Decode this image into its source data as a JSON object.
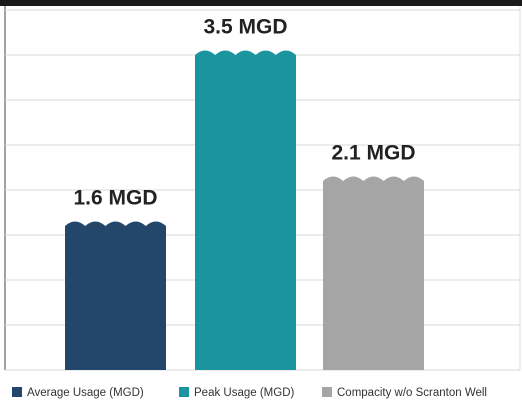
{
  "chart_data": {
    "type": "bar",
    "categories": [
      "Average Usage (MGD)",
      "Peak Usage (MGD)",
      "Compacity w/o Scranton Well"
    ],
    "values": [
      1.6,
      3.5,
      2.1
    ],
    "value_labels": [
      "1.6 MGD",
      "3.5 MGD",
      "2.1 MGD"
    ],
    "colors": [
      "#23476b",
      "#1a95a0",
      "#a5a5a5"
    ],
    "ylim": [
      0,
      4
    ],
    "yticks": [
      0,
      0.5,
      1,
      1.5,
      2,
      2.5,
      3,
      3.5,
      4
    ],
    "grid": true,
    "legend": "bottom"
  }
}
